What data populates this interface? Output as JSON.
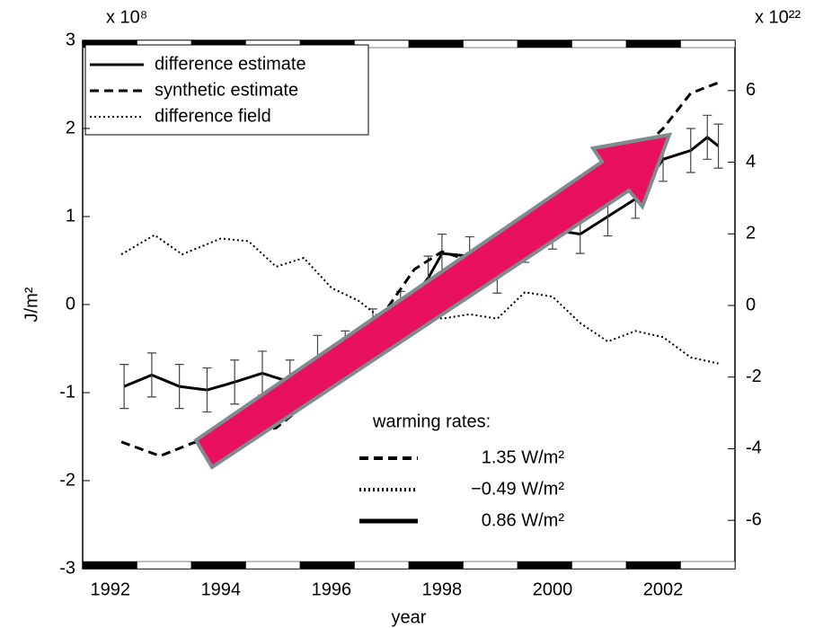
{
  "chart_data": {
    "type": "line",
    "xlabel": "year",
    "ylabel": "J/m²",
    "y_multiplier": "x 10⁸",
    "y2_multiplier": "x 10²²",
    "xlim": [
      1991.5,
      2003.3
    ],
    "xticks": [
      1992,
      1994,
      1996,
      1998,
      2000,
      2002
    ],
    "ylim": [
      -3,
      3
    ],
    "yticks": [
      -3,
      -2,
      -1,
      0,
      1,
      2,
      3
    ],
    "y2lim": [
      -7.35,
      7.4
    ],
    "y2ticks": [
      -6,
      -4,
      -2,
      0,
      2,
      4,
      6
    ],
    "legend": "upper left",
    "series": [
      {
        "name": "difference estimate",
        "color": "#000000",
        "style": "solid",
        "x": [
          1992.25,
          1992.75,
          1993.25,
          1993.75,
          1994.25,
          1994.75,
          1995.25,
          1995.75,
          1996.25,
          1996.75,
          1997.25,
          1997.75,
          1998.0,
          1998.5,
          1999.0,
          1999.5,
          2000.0,
          2000.5,
          2001.0,
          2001.5,
          2002.0,
          2002.5,
          2002.8,
          2003.0
        ],
        "values": [
          -0.93,
          -0.8,
          -0.93,
          -0.97,
          -0.88,
          -0.78,
          -0.88,
          -0.6,
          -0.55,
          -0.3,
          -0.1,
          0.3,
          0.58,
          0.55,
          0.35,
          0.7,
          0.85,
          0.8,
          1.0,
          1.2,
          1.65,
          1.75,
          1.9,
          1.8
        ],
        "errors": [
          0.25,
          0.25,
          0.25,
          0.25,
          0.25,
          0.25,
          0.25,
          0.25,
          0.25,
          0.25,
          0.25,
          0.25,
          0.22,
          0.22,
          0.22,
          0.22,
          0.22,
          0.22,
          0.22,
          0.22,
          0.25,
          0.25,
          0.25,
          0.25
        ]
      },
      {
        "name": "synthetic estimate",
        "color": "#000000",
        "style": "dashed",
        "x": [
          1992.2,
          1992.9,
          1993.5,
          1994.5,
          1995.0,
          1995.5,
          1996.0,
          1996.5,
          1997.0,
          1997.5,
          1998.0,
          1998.5,
          1999.0,
          1999.5,
          2000.0,
          2000.5,
          2001.0,
          2001.5,
          2002.0,
          2002.5,
          2003.0
        ],
        "values": [
          -1.56,
          -1.72,
          -1.57,
          -1.48,
          -1.4,
          -1.15,
          -0.95,
          -0.7,
          -0.05,
          0.4,
          0.6,
          0.5,
          0.5,
          0.95,
          1.15,
          1.25,
          1.4,
          1.7,
          2.0,
          2.4,
          2.52
        ]
      },
      {
        "name": "difference field",
        "color": "#000000",
        "style": "dotted",
        "x": [
          1992.2,
          1992.8,
          1993.3,
          1994.0,
          1994.5,
          1995.0,
          1995.5,
          1996.0,
          1996.5,
          1997.0,
          1997.5,
          1998.0,
          1998.5,
          1999.0,
          1999.5,
          2000.0,
          2000.5,
          2001.0,
          2001.5,
          2002.0,
          2002.5,
          2003.0
        ],
        "values": [
          0.57,
          0.79,
          0.57,
          0.75,
          0.72,
          0.43,
          0.53,
          0.19,
          0.04,
          -0.21,
          -0.06,
          -0.16,
          -0.11,
          -0.16,
          0.14,
          0.09,
          -0.21,
          -0.42,
          -0.3,
          -0.37,
          -0.6,
          -0.67
        ]
      }
    ],
    "rates_title": "warming rates:",
    "rates": [
      {
        "label": "1.35 W/m²",
        "style": "dashed"
      },
      {
        "label": "−0.49 W/m²",
        "style": "dotted"
      },
      {
        "label": "0.86 W/m²",
        "style": "solid"
      }
    ]
  }
}
